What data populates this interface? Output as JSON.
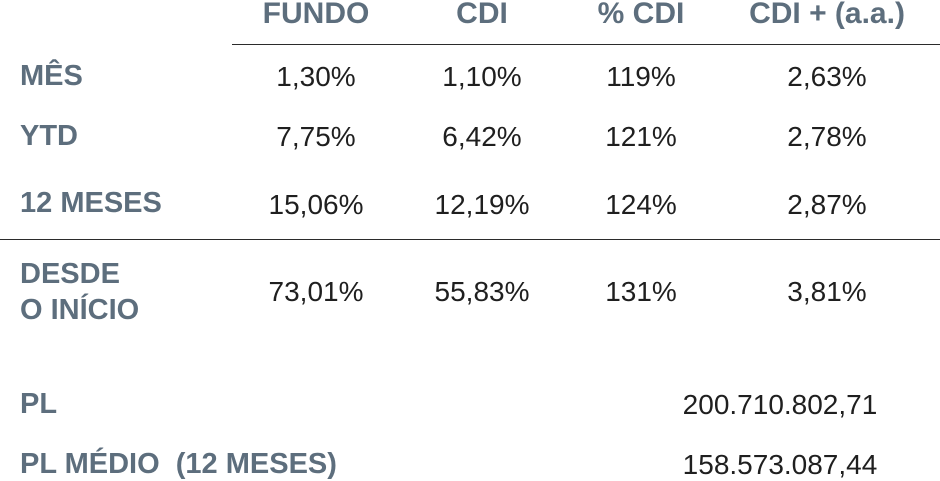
{
  "header": {
    "col1": "FUNDO",
    "col2": "CDI",
    "col3": "% CDI",
    "col4": "CDI + (a.a.)"
  },
  "rows": [
    {
      "label": "MÊS",
      "values": [
        "1,30%",
        "1,10%",
        "119%",
        "2,63%"
      ]
    },
    {
      "label": "YTD",
      "values": [
        "7,75%",
        "6,42%",
        "121%",
        "2,78%"
      ]
    },
    {
      "label": "12 MESES",
      "values": [
        "15,06%",
        "12,19%",
        "124%",
        "2,87%"
      ]
    },
    {
      "label_line1": "DESDE",
      "label_line2": "O INÍCIO",
      "values": [
        "73,01%",
        "55,83%",
        "131%",
        "3,81%"
      ]
    }
  ],
  "pl": {
    "label": "PL",
    "value": "200.710.802,71"
  },
  "pl_medio": {
    "label": "PL MÉDIO  (12 MESES)",
    "value": "158.573.087,44"
  },
  "colors": {
    "label": "#5d6e7d",
    "value": "#1f1f1f",
    "rule": "#2b2b2b"
  }
}
